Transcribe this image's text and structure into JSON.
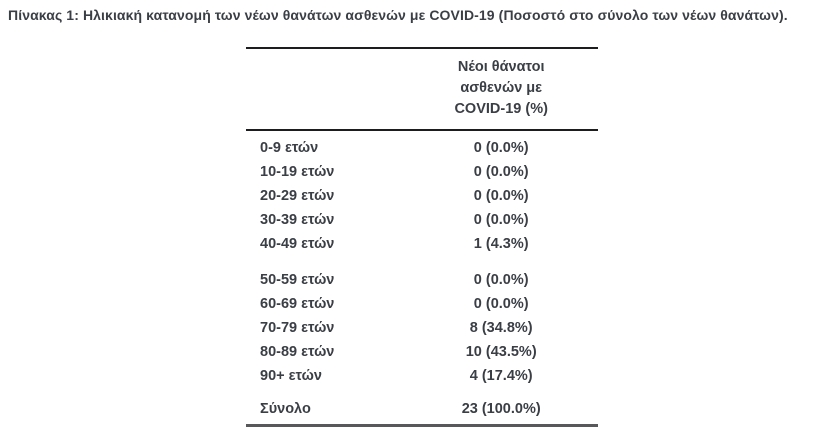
{
  "title": "Πίνακας 1: Ηλικιακή κατανομή των νέων θανάτων ασθενών με COVID-19 (Ποσοστό στο σύνολο των νέων θανάτων).",
  "table": {
    "header_lines": [
      "Νέοι θάνατοι",
      "ασθενών με",
      "COVID-19 (%)"
    ],
    "groups": [
      {
        "rows": [
          {
            "age": "0-9 ετών",
            "value": "0 (0.0%)"
          },
          {
            "age": "10-19 ετών",
            "value": "0 (0.0%)"
          },
          {
            "age": "20-29 ετών",
            "value": "0 (0.0%)"
          },
          {
            "age": "30-39 ετών",
            "value": "0 (0.0%)"
          },
          {
            "age": "40-49 ετών",
            "value": "1 (4.3%)"
          }
        ]
      },
      {
        "rows": [
          {
            "age": "50-59 ετών",
            "value": "0 (0.0%)"
          },
          {
            "age": "60-69 ετών",
            "value": "0 (0.0%)"
          },
          {
            "age": "70-79 ετών",
            "value": "8 (34.8%)"
          },
          {
            "age": "80-89 ετών",
            "value": "10 (43.5%)"
          },
          {
            "age": "90+ ετών",
            "value": "4 (17.4%)"
          }
        ]
      }
    ],
    "total": {
      "label": "Σύνολο",
      "value": "23 (100.0%)"
    }
  },
  "chart_data": {
    "type": "table",
    "title": "Πίνακας 1: Ηλικιακή κατανομή των νέων θανάτων ασθενών με COVID-19 (Ποσοστό στο σύνολο των νέων θανάτων).",
    "columns": [
      "",
      "Νέοι θάνατοι ασθενών με COVID-19 (%)"
    ],
    "categories": [
      "0-9 ετών",
      "10-19 ετών",
      "20-29 ετών",
      "30-39 ετών",
      "40-49 ετών",
      "50-59 ετών",
      "60-69 ετών",
      "70-79 ετών",
      "80-89 ετών",
      "90+ ετών"
    ],
    "deaths": [
      0,
      0,
      0,
      0,
      1,
      0,
      0,
      8,
      10,
      4
    ],
    "percent": [
      0.0,
      0.0,
      0.0,
      0.0,
      4.3,
      0.0,
      0.0,
      34.8,
      43.5,
      17.4
    ],
    "total_deaths": 23,
    "total_percent": 100.0
  },
  "colors": {
    "text": "#3a3e45",
    "rule_dark": "#1d1d1f",
    "rule_gray": "#58585a",
    "background": "#ffffff"
  }
}
